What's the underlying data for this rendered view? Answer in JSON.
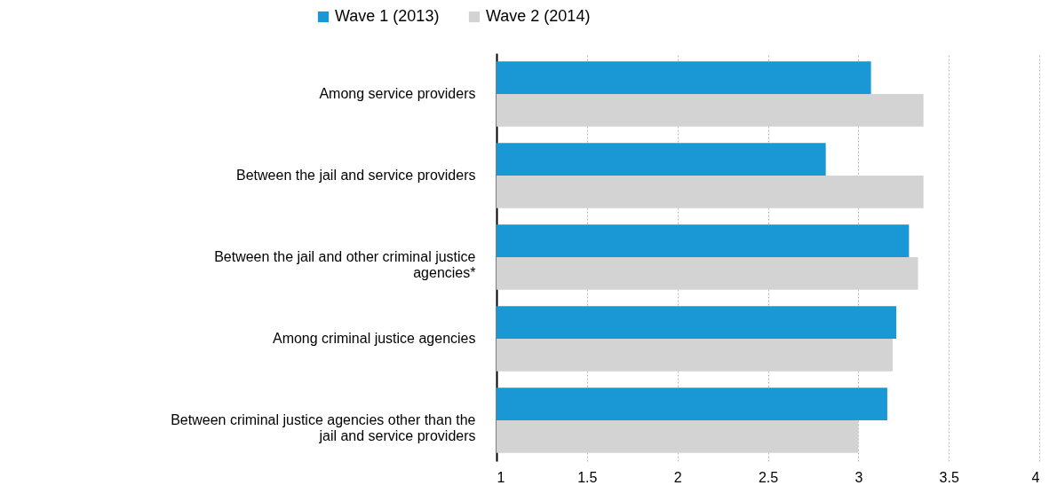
{
  "chart_data": {
    "type": "bar",
    "orientation": "horizontal",
    "categories": [
      "Among service providers",
      "Between the jail and service providers",
      "Between the jail and other criminal justice agencies*",
      "Among criminal justice agencies",
      "Between criminal justice agencies other than the jail and service providers"
    ],
    "series": [
      {
        "name": "Wave 1 (2013)",
        "color": "#1a98d5",
        "values": [
          3.07,
          2.82,
          3.28,
          3.21,
          3.16
        ]
      },
      {
        "name": "Wave 2 (2014)",
        "color": "#d3d3d3",
        "values": [
          3.36,
          3.36,
          3.33,
          3.19,
          3.0
        ]
      }
    ],
    "xlim": [
      1,
      4
    ],
    "xticks": [
      1,
      1.5,
      2,
      2.5,
      3,
      3.5,
      4
    ],
    "grid": "x",
    "legend": "top"
  }
}
